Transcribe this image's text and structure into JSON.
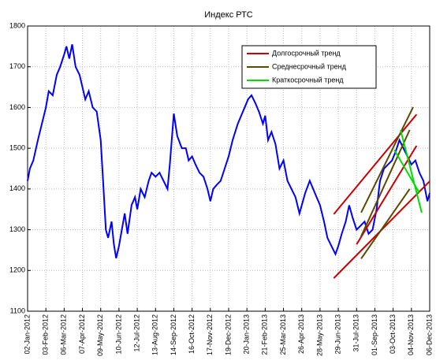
{
  "chart_data": {
    "type": "line",
    "title": "Индекс РТС",
    "xlim": [
      "2012-01-02",
      "2013-12-06"
    ],
    "xticks": [
      {
        "value": "2012-01-02",
        "label": "02-Jan-2012"
      },
      {
        "value": "2012-02-03",
        "label": "03-Feb-2012"
      },
      {
        "value": "2012-03-06",
        "label": "06-Mar-2012"
      },
      {
        "value": "2012-04-07",
        "label": "07-Apr-2012"
      },
      {
        "value": "2012-05-09",
        "label": "09-May-2012"
      },
      {
        "value": "2012-06-10",
        "label": "10-Jun-2012"
      },
      {
        "value": "2012-07-12",
        "label": "12-Jul-2012"
      },
      {
        "value": "2012-08-13",
        "label": "13-Aug-2012"
      },
      {
        "value": "2012-09-14",
        "label": "14-Sep-2012"
      },
      {
        "value": "2012-10-16",
        "label": "16-Oct-2012"
      },
      {
        "value": "2012-11-17",
        "label": "17-Nov-2012"
      },
      {
        "value": "2012-12-19",
        "label": "19-Dec-2012"
      },
      {
        "value": "2013-01-20",
        "label": "20-Jan-2013"
      },
      {
        "value": "2013-02-21",
        "label": "21-Feb-2013"
      },
      {
        "value": "2013-03-25",
        "label": "25-Mar-2013"
      },
      {
        "value": "2013-04-26",
        "label": "26-Apr-2013"
      },
      {
        "value": "2013-05-28",
        "label": "28-May-2013"
      },
      {
        "value": "2013-06-29",
        "label": "29-Jun-2013"
      },
      {
        "value": "2013-07-31",
        "label": "31-Jul-2013"
      },
      {
        "value": "2013-09-01",
        "label": "01-Sep-2013"
      },
      {
        "value": "2013-10-03",
        "label": "03-Oct-2013"
      },
      {
        "value": "2013-11-04",
        "label": "04-Nov-2013"
      },
      {
        "value": "2013-12-06",
        "label": "06-Dec-2013"
      }
    ],
    "ylim": [
      1100,
      1800
    ],
    "yticks": [
      1100,
      1200,
      1300,
      1400,
      1500,
      1600,
      1700,
      1800
    ],
    "grid": true,
    "legend": "upper right",
    "line": {
      "color": "#0000ff",
      "x": [
        "2012-01-02",
        "2012-01-06",
        "2012-01-12",
        "2012-01-20",
        "2012-01-27",
        "2012-02-03",
        "2012-02-08",
        "2012-02-15",
        "2012-02-22",
        "2012-02-28",
        "2012-03-06",
        "2012-03-10",
        "2012-03-15",
        "2012-03-20",
        "2012-03-26",
        "2012-04-02",
        "2012-04-07",
        "2012-04-12",
        "2012-04-18",
        "2012-04-25",
        "2012-05-02",
        "2012-05-09",
        "2012-05-14",
        "2012-05-18",
        "2012-05-22",
        "2012-05-28",
        "2012-06-01",
        "2012-06-05",
        "2012-06-10",
        "2012-06-15",
        "2012-06-20",
        "2012-06-25",
        "2012-07-02",
        "2012-07-08",
        "2012-07-12",
        "2012-07-18",
        "2012-07-25",
        "2012-08-01",
        "2012-08-06",
        "2012-08-13",
        "2012-08-20",
        "2012-08-27",
        "2012-09-03",
        "2012-09-07",
        "2012-09-14",
        "2012-09-20",
        "2012-09-28",
        "2012-10-05",
        "2012-10-10",
        "2012-10-16",
        "2012-10-22",
        "2012-10-29",
        "2012-11-05",
        "2012-11-12",
        "2012-11-17",
        "2012-11-22",
        "2012-11-28",
        "2012-12-05",
        "2012-12-12",
        "2012-12-19",
        "2012-12-26",
        "2013-01-04",
        "2013-01-10",
        "2013-01-16",
        "2013-01-22",
        "2013-01-28",
        "2013-02-04",
        "2013-02-10",
        "2013-02-17",
        "2013-02-21",
        "2013-02-26",
        "2013-03-04",
        "2013-03-11",
        "2013-03-18",
        "2013-03-25",
        "2013-04-01",
        "2013-04-08",
        "2013-04-15",
        "2013-04-22",
        "2013-04-26",
        "2013-05-02",
        "2013-05-10",
        "2013-05-16",
        "2013-05-22",
        "2013-05-28",
        "2013-06-04",
        "2013-06-10",
        "2013-06-17",
        "2013-06-24",
        "2013-06-29",
        "2013-07-05",
        "2013-07-12",
        "2013-07-18",
        "2013-07-24",
        "2013-07-31",
        "2013-08-07",
        "2013-08-14",
        "2013-08-21",
        "2013-08-28",
        "2013-09-04",
        "2013-09-10",
        "2013-09-17",
        "2013-09-24",
        "2013-10-01",
        "2013-10-07",
        "2013-10-14",
        "2013-10-21",
        "2013-10-28",
        "2013-11-04",
        "2013-11-11",
        "2013-11-18",
        "2013-11-25",
        "2013-12-02",
        "2013-12-06"
      ],
      "values": [
        1420,
        1450,
        1470,
        1520,
        1560,
        1600,
        1640,
        1630,
        1680,
        1700,
        1730,
        1750,
        1720,
        1755,
        1700,
        1680,
        1650,
        1620,
        1640,
        1600,
        1590,
        1520,
        1400,
        1300,
        1280,
        1320,
        1265,
        1230,
        1260,
        1300,
        1340,
        1290,
        1360,
        1380,
        1350,
        1400,
        1380,
        1420,
        1440,
        1430,
        1440,
        1420,
        1400,
        1460,
        1585,
        1530,
        1500,
        1500,
        1470,
        1480,
        1460,
        1440,
        1430,
        1400,
        1370,
        1400,
        1410,
        1420,
        1450,
        1480,
        1520,
        1560,
        1580,
        1600,
        1620,
        1630,
        1610,
        1590,
        1560,
        1580,
        1520,
        1540,
        1510,
        1450,
        1470,
        1420,
        1400,
        1380,
        1340,
        1360,
        1390,
        1420,
        1400,
        1380,
        1360,
        1320,
        1280,
        1260,
        1240,
        1260,
        1290,
        1320,
        1360,
        1330,
        1300,
        1310,
        1320,
        1290,
        1300,
        1350,
        1420,
        1450,
        1460,
        1470,
        1490,
        1520,
        1500,
        1480,
        1460,
        1470,
        1440,
        1420,
        1370,
        1390
      ]
    },
    "series": [
      {
        "name": "Долгосрочный тренд",
        "color": "#cc0000",
        "lines": [
          {
            "x": [
              "2013-06-21",
              "2013-11-13"
            ],
            "values": [
              1338,
              1583
            ]
          },
          {
            "x": [
              "2013-07-31",
              "2013-11-13"
            ],
            "values": [
              1264,
              1506
            ]
          },
          {
            "x": [
              "2013-06-21",
              "2013-12-06"
            ],
            "values": [
              1181,
              1419
            ]
          }
        ]
      },
      {
        "name": "Среднесрочный тренд",
        "color": "#5a4a00",
        "lines": [
          {
            "x": [
              "2013-08-08",
              "2013-11-07"
            ],
            "values": [
              1342,
              1601
            ]
          },
          {
            "x": [
              "2013-08-08",
              "2013-11-01"
            ],
            "values": [
              1284,
              1545
            ]
          },
          {
            "x": [
              "2013-08-08",
              "2013-11-01"
            ],
            "values": [
              1229,
              1400
            ]
          }
        ]
      },
      {
        "name": "Краткосрочный тренд",
        "color": "#00dd00",
        "lines": [
          {
            "x": [
              "2013-10-16",
              "2013-11-22"
            ],
            "values": [
              1545,
              1342
            ]
          },
          {
            "x": [
              "2013-10-05",
              "2013-11-18"
            ],
            "values": [
              1496,
              1390
            ]
          }
        ]
      }
    ]
  }
}
